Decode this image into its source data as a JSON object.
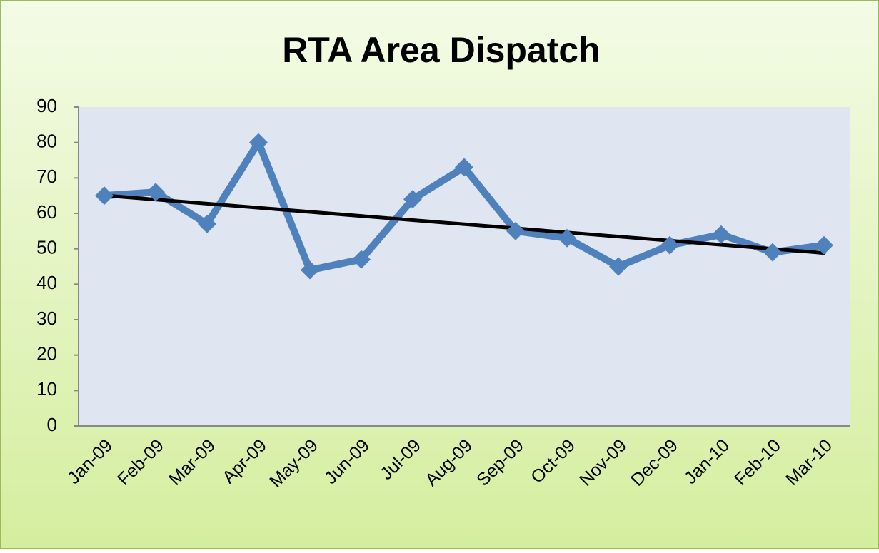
{
  "chart_data": {
    "type": "line",
    "title": "RTA Area Dispatch",
    "categories": [
      "Jan-09",
      "Feb-09",
      "Mar-09",
      "Apr-09",
      "May-09",
      "Jun-09",
      "Jul-09",
      "Aug-09",
      "Sep-09",
      "Oct-09",
      "Nov-09",
      "Dec-09",
      "Jan-10",
      "Feb-10",
      "Mar-10"
    ],
    "series": [
      {
        "color": "#4f81bd",
        "values": [
          65,
          66,
          57,
          80,
          44,
          47,
          64,
          73,
          55,
          53,
          45,
          51,
          54,
          49,
          51
        ]
      }
    ],
    "ylim": [
      0,
      90
    ],
    "yticks": [
      0,
      10,
      20,
      30,
      40,
      50,
      60,
      70,
      80,
      90
    ],
    "trendline": "linear",
    "trendline_color": "#000000",
    "marker": "diamond"
  }
}
